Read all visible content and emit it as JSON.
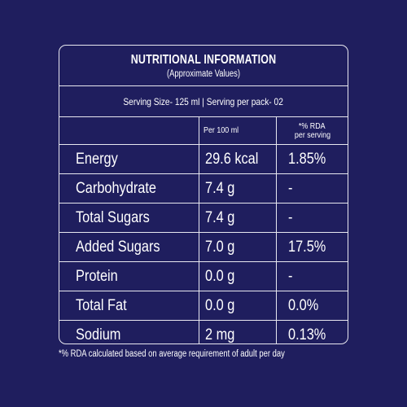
{
  "colors": {
    "background": "#1f1e5e",
    "text": "#ffffff",
    "border": "#e8e8f0"
  },
  "header": {
    "title": "NUTRITIONAL INFORMATION",
    "subtitle": "(Approximate Values)"
  },
  "serving": "Serving Size- 125 ml | Serving per pack- 02",
  "columns": {
    "per100": "Per 100 ml",
    "rda_line1": "*% RDA",
    "rda_line2": "per serving"
  },
  "rows": [
    {
      "name": "Energy",
      "per100": "29.6 kcal",
      "rda": "1.85%"
    },
    {
      "name": "Carbohydrate",
      "per100": "7.4 g",
      "rda": "-"
    },
    {
      "name": "Total Sugars",
      "per100": "7.4 g",
      "rda": "-"
    },
    {
      "name": "Added Sugars",
      "per100": "7.0 g",
      "rda": "17.5%"
    },
    {
      "name": "Protein",
      "per100": "0.0 g",
      "rda": "-"
    },
    {
      "name": "Total Fat",
      "per100": "0.0 g",
      "rda": "0.0%"
    },
    {
      "name": "Sodium",
      "per100": "2 mg",
      "rda": "0.13%"
    }
  ],
  "footnote": "*% RDA calculated based on average requirement of adult per  day"
}
